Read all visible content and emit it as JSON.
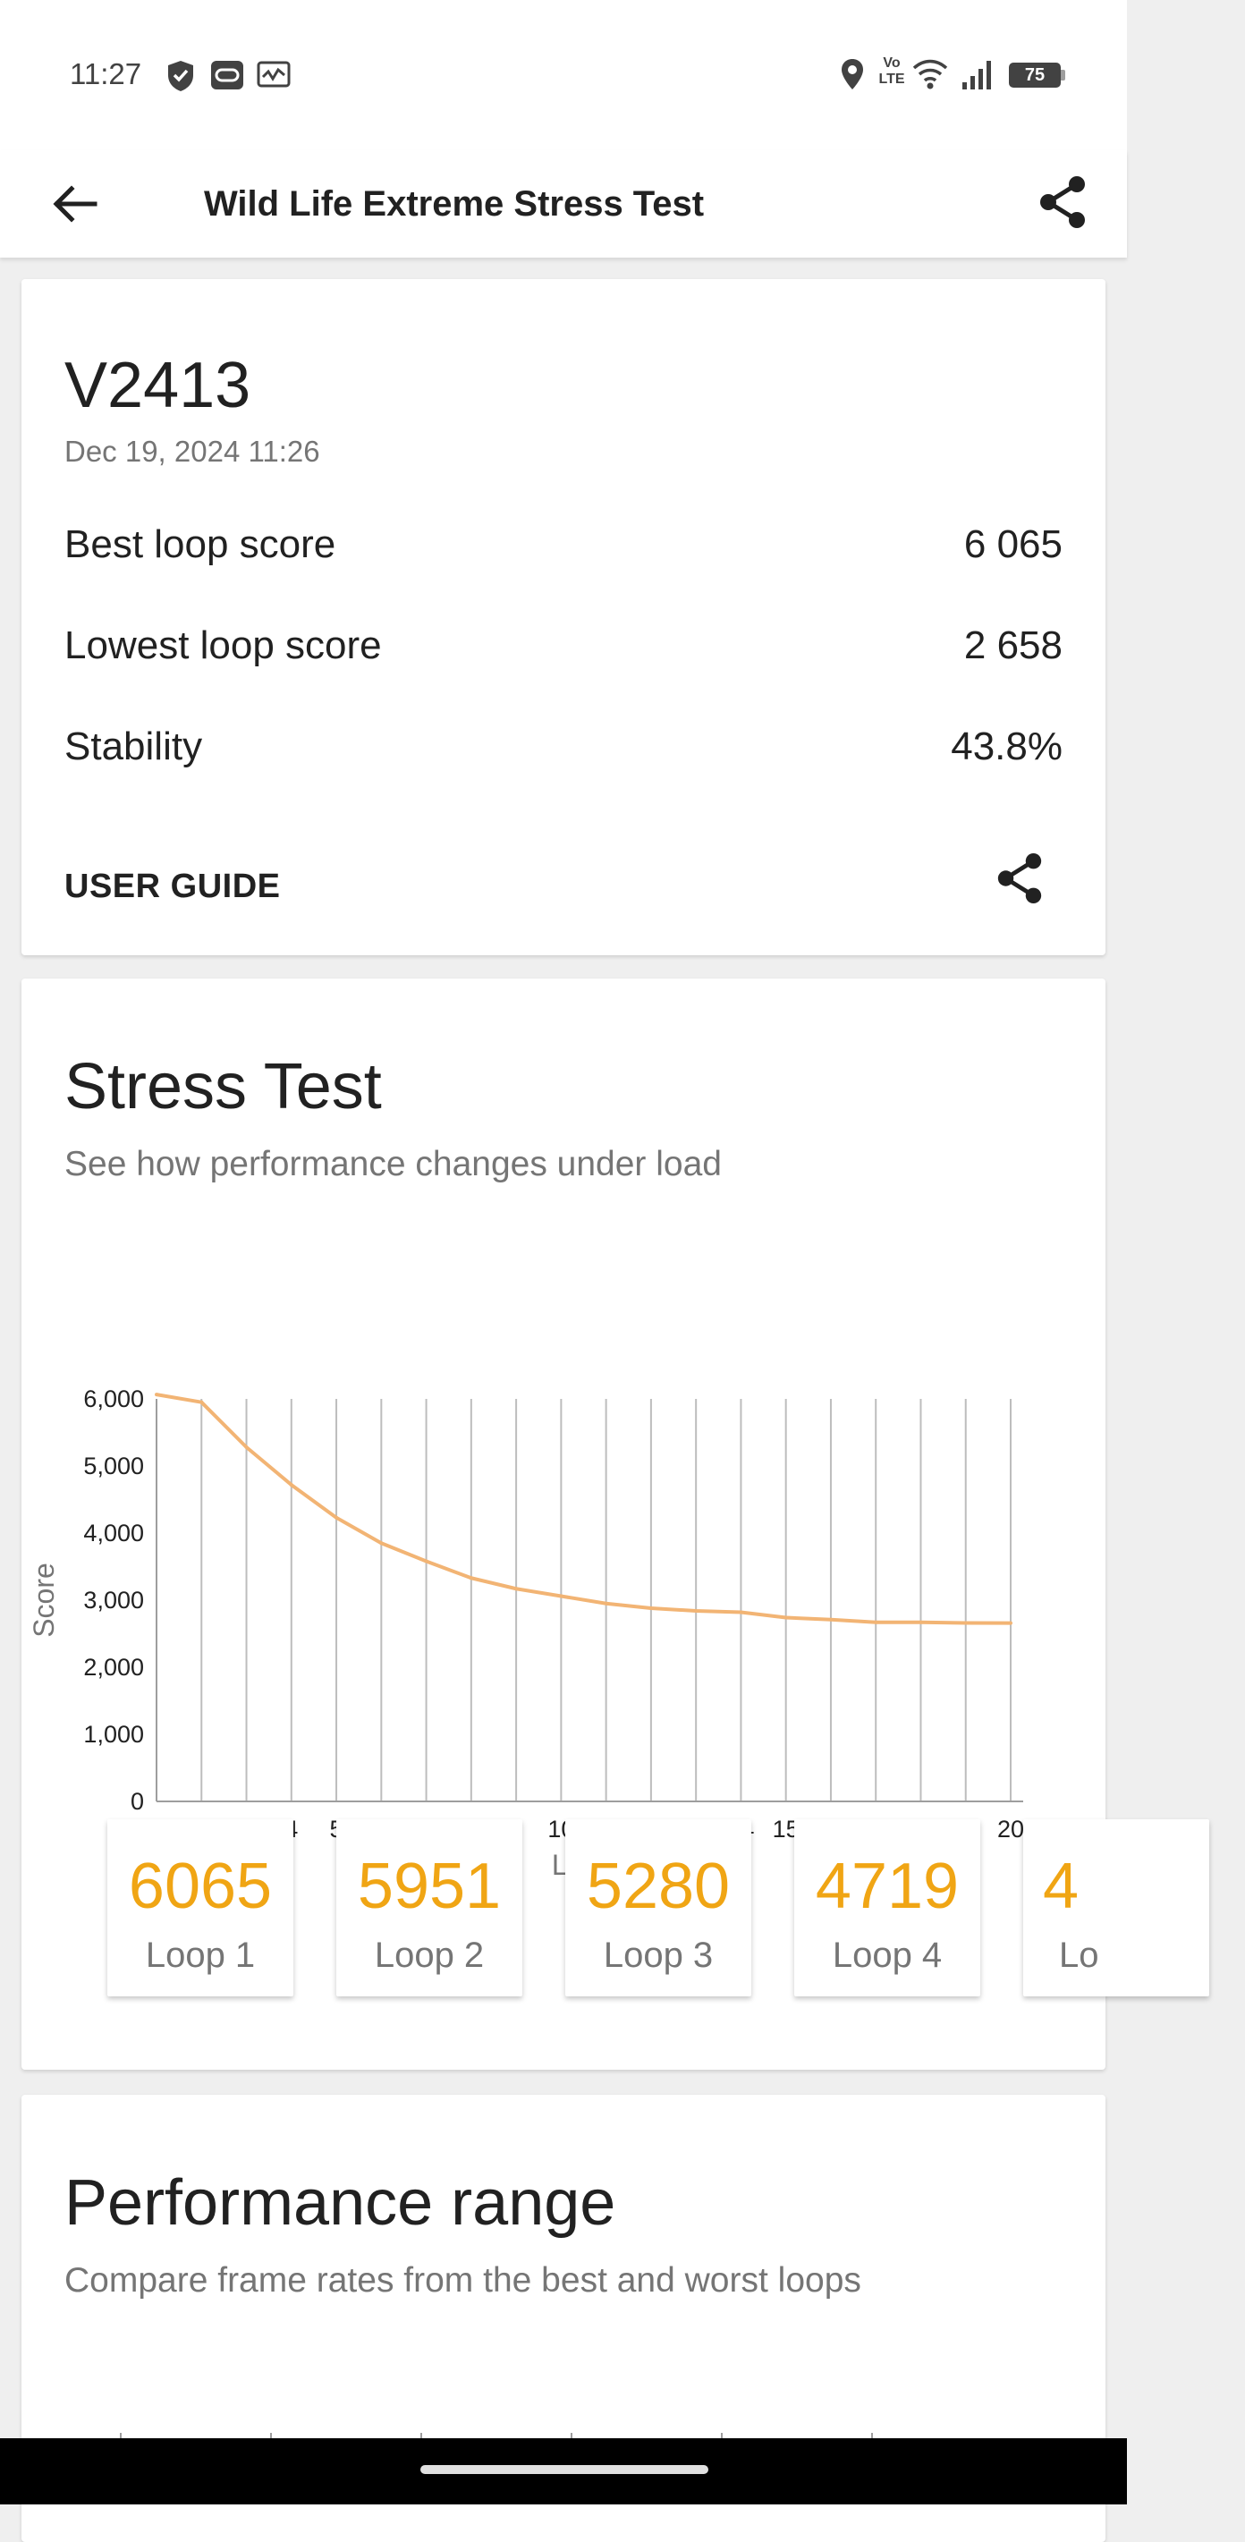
{
  "status_bar": {
    "time": "11:27",
    "left_icons": [
      "shield-check-icon",
      "game-pad-icon",
      "monitor-chart-icon"
    ],
    "right_icons": [
      "location-icon",
      "volte-icon",
      "wifi-icon",
      "signal-icon",
      "battery-icon"
    ],
    "volte_top": "Vo",
    "volte_bottom": "LTE",
    "battery": "75"
  },
  "app_bar": {
    "title": "Wild Life Extreme Stress Test"
  },
  "summary": {
    "device": "V2413",
    "date": "Dec 19, 2024 11:26",
    "stats": [
      {
        "label": "Best loop score",
        "value": "6 065"
      },
      {
        "label": "Lowest loop score",
        "value": "2 658"
      },
      {
        "label": "Stability",
        "value": "43.8%"
      }
    ],
    "user_guide": "USER GUIDE"
  },
  "stress": {
    "title": "Stress Test",
    "subtitle": "See how performance changes under load",
    "loops": [
      {
        "score": "6065",
        "label": "Loop 1"
      },
      {
        "score": "5951",
        "label": "Loop 2"
      },
      {
        "score": "5280",
        "label": "Loop 3"
      },
      {
        "score": "4719",
        "label": "Loop 4"
      },
      {
        "score": "4",
        "label": "Lo"
      }
    ]
  },
  "performance": {
    "title": "Performance range",
    "subtitle": "Compare frame rates from the best and worst loops"
  },
  "colors": {
    "accent": "#f0a514",
    "line": "#f2b474"
  },
  "chart_data": {
    "type": "line",
    "title": "",
    "xlabel": "Loop",
    "ylabel": "Score",
    "x": [
      1,
      2,
      3,
      4,
      5,
      6,
      7,
      8,
      9,
      10,
      11,
      12,
      13,
      14,
      15,
      16,
      17,
      18,
      19,
      20
    ],
    "ylim": [
      0,
      6000
    ],
    "yticks": [
      "0",
      "1,000",
      "2,000",
      "3,000",
      "4,000",
      "5,000",
      "6,000"
    ],
    "ytick_values": [
      0,
      1000,
      2000,
      3000,
      4000,
      5000,
      6000
    ],
    "grid": "vertical",
    "series": [
      {
        "values": [
          6065,
          5951,
          5280,
          4719,
          4230,
          3850,
          3580,
          3330,
          3170,
          3060,
          2950,
          2880,
          2840,
          2820,
          2740,
          2710,
          2670,
          2670,
          2660,
          2658
        ]
      }
    ]
  }
}
